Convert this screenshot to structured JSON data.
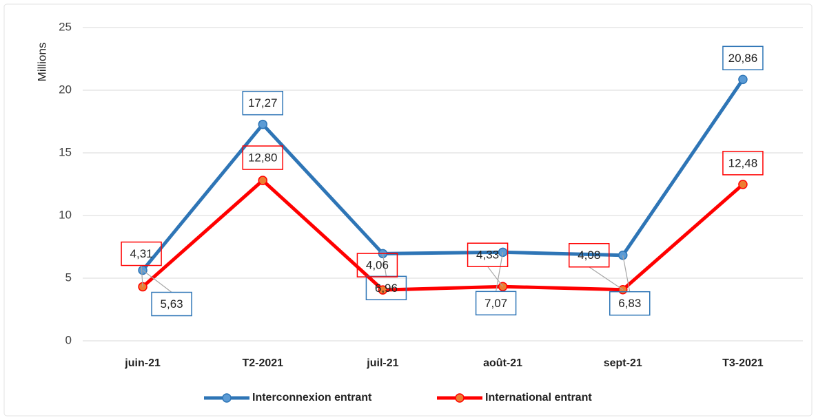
{
  "chart_data": {
    "type": "line",
    "y_label": "Millions",
    "categories": [
      "juin-21",
      "T2-2021",
      "juil-21",
      "août-21",
      "sept-21",
      "T3-2021"
    ],
    "series": [
      {
        "name": "Interconnexion entrant",
        "color": "#2e75b6",
        "marker_color": "#5b9bd5",
        "values": [
          5.63,
          17.27,
          6.96,
          7.07,
          6.83,
          20.86
        ],
        "value_labels": [
          "5,63",
          "17,27",
          "6,96",
          "7,07",
          "6,83",
          "20,86"
        ]
      },
      {
        "name": "International entrant",
        "color": "#ff0000",
        "marker_color": "#ed7d31",
        "values": [
          4.31,
          12.8,
          4.06,
          4.33,
          4.08,
          12.48
        ],
        "value_labels": [
          "4,31",
          "12,80",
          "4,06",
          "4,33",
          "4,08",
          "12,48"
        ]
      }
    ],
    "ylim": [
      0,
      25
    ],
    "yticks": [
      0,
      5,
      10,
      15,
      20,
      25
    ],
    "grid": true,
    "legend": "bottom"
  }
}
